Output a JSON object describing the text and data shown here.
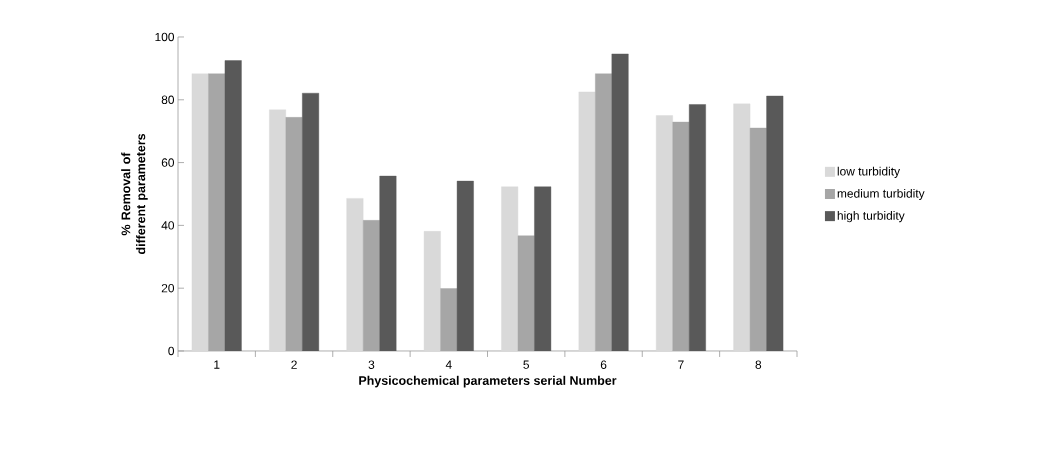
{
  "chart_data": {
    "type": "bar",
    "xlabel": "Physicochemical parameters serial Number",
    "ylabel": "% Removal of different parameters",
    "categories": [
      "1",
      "2",
      "3",
      "4",
      "5",
      "6",
      "7",
      "8"
    ],
    "series": [
      {
        "name": "low turbidity",
        "color": "#d9d9d9",
        "values": [
          88.3,
          76.8,
          48.6,
          38.1,
          52.3,
          82.5,
          75.0,
          78.7
        ]
      },
      {
        "name": "medium turbidity",
        "color": "#a6a6a6",
        "values": [
          88.3,
          74.4,
          41.6,
          19.9,
          36.7,
          88.3,
          72.9,
          71.0
        ]
      },
      {
        "name": "high turbidity",
        "color": "#595959",
        "values": [
          92.5,
          82.1,
          55.7,
          54.1,
          52.3,
          94.6,
          78.5,
          81.2
        ]
      }
    ],
    "ylim": [
      0,
      100
    ],
    "yticks": [
      0,
      20,
      40,
      60,
      80,
      100
    ],
    "grid": false,
    "legend": "right"
  }
}
